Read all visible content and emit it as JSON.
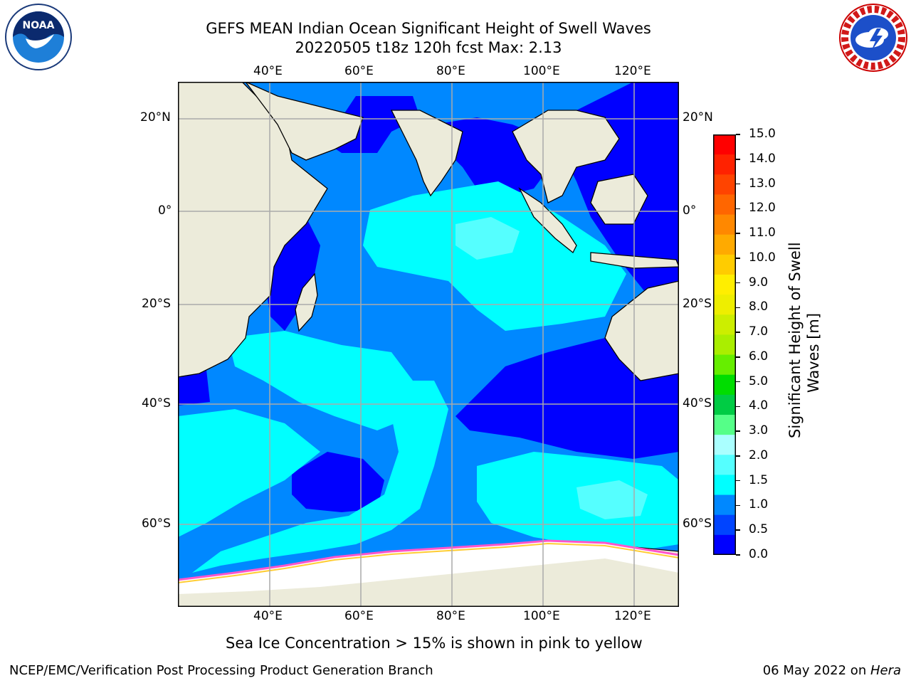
{
  "title": {
    "line1": "GEFS MEAN Indian Ocean Significant Height of Swell Waves",
    "line2": "20220505 t18z 120h fcst   Max: 2.13"
  },
  "logos": {
    "left": {
      "icon": "noaa-logo-icon",
      "text": "NOAA"
    },
    "right": {
      "icon": "nws-logo-icon",
      "text": "NATIONAL WEATHER SERVICE"
    }
  },
  "map": {
    "lon_ticks": [
      "40°E",
      "60°E",
      "80°E",
      "100°E",
      "120°E"
    ],
    "lat_ticks": [
      "20°N",
      "0°",
      "20°S",
      "40°S",
      "60°S"
    ],
    "lon_range": [
      20,
      130
    ],
    "lat_range": [
      -73,
      27
    ],
    "land_color": "#ecebda",
    "ice_color": "#ffffff"
  },
  "colorbar": {
    "label": "Significant Height of Swell Waves [m]",
    "label_lines": [
      "Significant Height of Swell",
      "Waves [m]"
    ],
    "ticks": [
      "15.0",
      "14.0",
      "13.0",
      "12.0",
      "11.0",
      "10.0",
      "9.0",
      "8.0",
      "7.0",
      "6.0",
      "5.0",
      "4.0",
      "3.0",
      "2.0",
      "1.5",
      "1.0",
      "0.5",
      "0.0"
    ],
    "colors": [
      "#ff0000",
      "#ff2200",
      "#ff4400",
      "#ff6600",
      "#ff8800",
      "#ffaa00",
      "#ffcc00",
      "#ffee00",
      "#eeee00",
      "#ccee00",
      "#aaee00",
      "#66ee00",
      "#00dd00",
      "#00cc44",
      "#55ff88",
      "#aaffff",
      "#55ffff",
      "#00ffff",
      "#0088ff",
      "#0044ff",
      "#0000ff"
    ]
  },
  "caption": "Sea Ice Concentration > 15% is shown in pink to yellow",
  "footer": {
    "left": "NCEP/EMC/Verification Post Processing Product Generation Branch",
    "right_date": "06 May 2022 on ",
    "right_host": "Hera"
  }
}
